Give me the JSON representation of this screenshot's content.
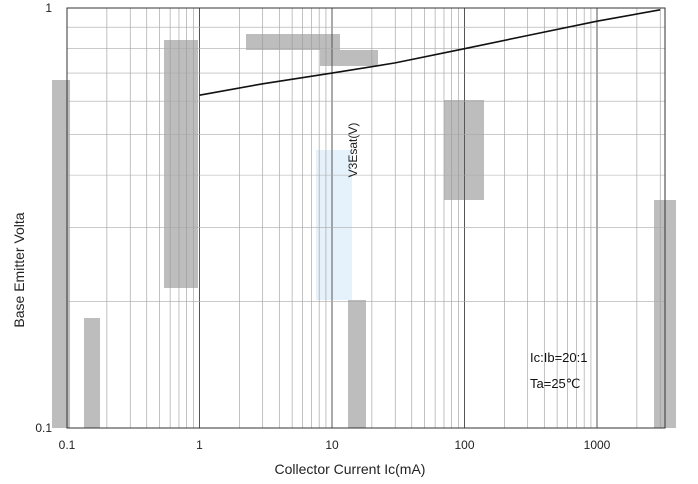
{
  "chart_data": {
    "type": "line",
    "title": "",
    "xlabel": "Collector Current   Ic(mA)",
    "ylabel": "Base Emitter Volta",
    "ylabel_secondary": "V3Esat(V)",
    "x_scale": "log",
    "y_scale": "log",
    "xlim": [
      0.1,
      1000
    ],
    "ylim": [
      0.1,
      1
    ],
    "x_ticks": [
      "0.1",
      "1",
      "10",
      "100",
      "1000"
    ],
    "y_ticks": [
      "1",
      "0.1"
    ],
    "grid": true,
    "annotations": [
      "Ic:Ib=20:1",
      "Ta=25℃"
    ],
    "series": [
      {
        "x": [
          1,
          3,
          10,
          30,
          100,
          300,
          1000,
          3000
        ],
        "y": [
          0.62,
          0.66,
          0.7,
          0.74,
          0.8,
          0.86,
          0.93,
          0.99
        ]
      }
    ]
  }
}
